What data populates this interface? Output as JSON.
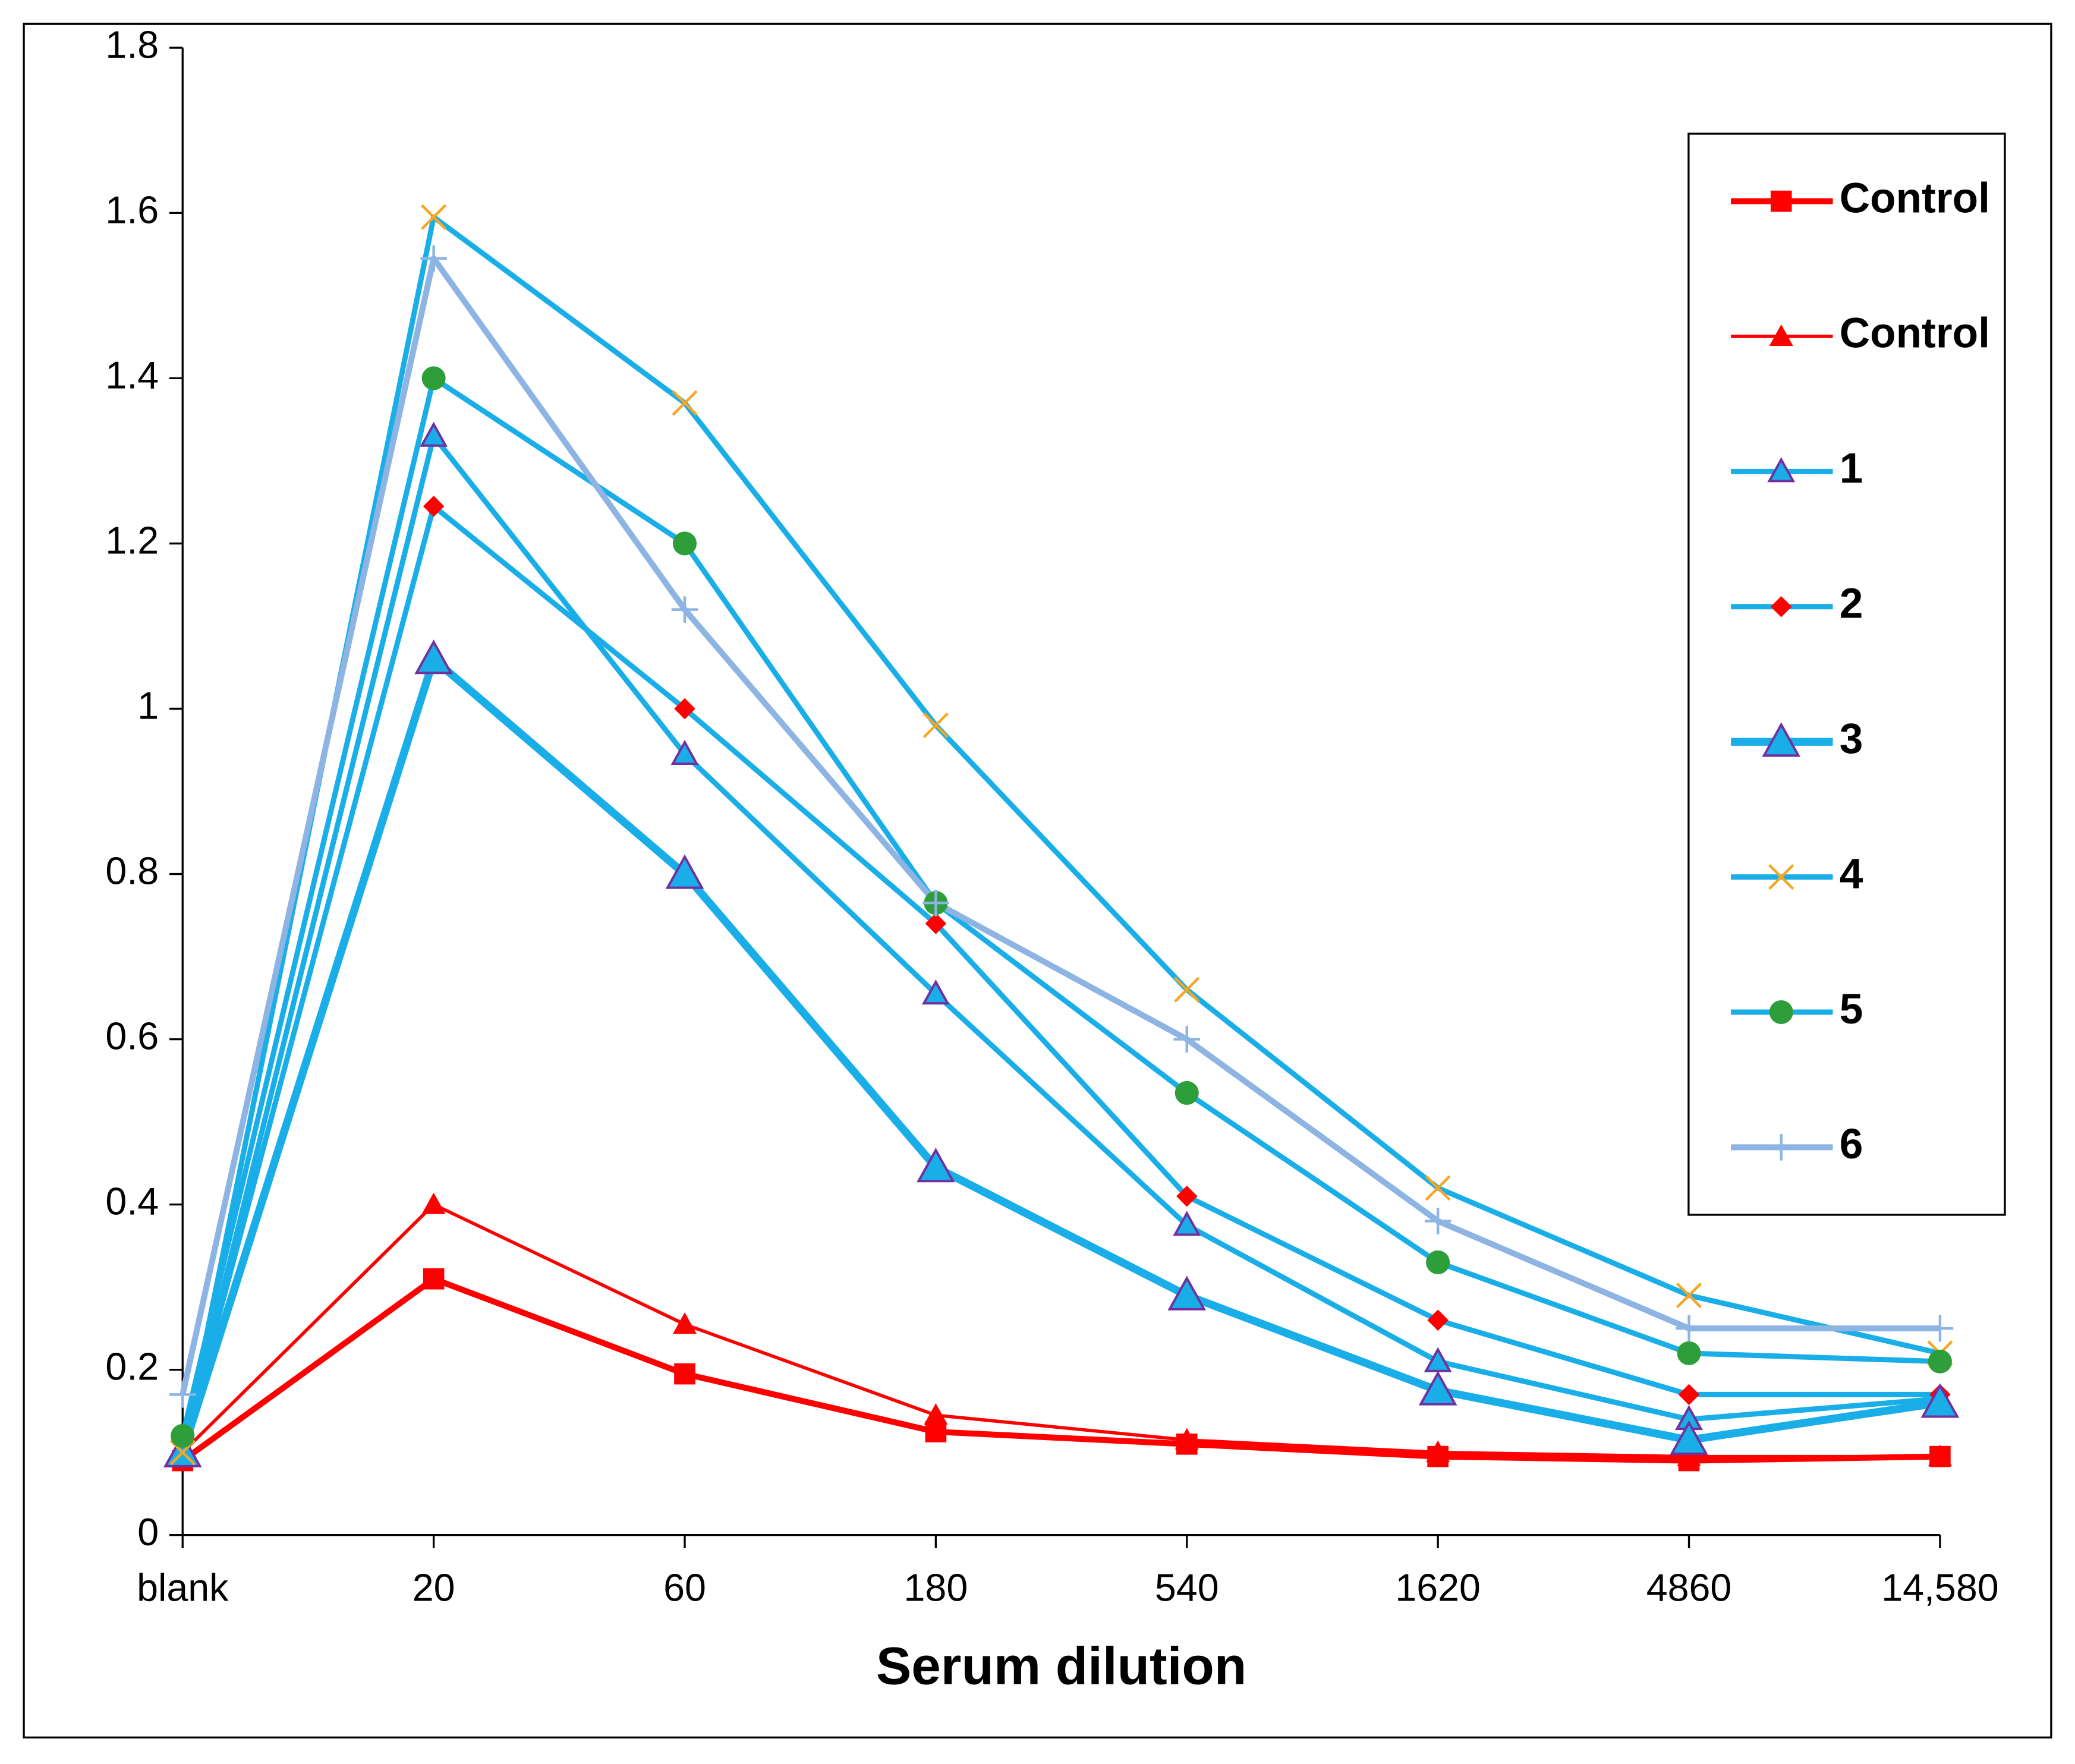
{
  "chart_data": {
    "type": "line",
    "x_label": "Serum  dilution",
    "categories": [
      "blank",
      "20",
      "60",
      "180",
      "540",
      "1620",
      "4860",
      "14,580"
    ],
    "ylim": [
      0,
      1.8
    ],
    "yticks": [
      0,
      0.2,
      0.4,
      0.6,
      0.8,
      1,
      1.2,
      1.4,
      1.6,
      1.8
    ],
    "grid": false,
    "legend_position": "right",
    "series": [
      {
        "name": "Control",
        "color": "#ff0000",
        "marker": "square",
        "marker_color": "#ff0000",
        "line_width": 4.5,
        "values": [
          0.09,
          0.31,
          0.195,
          0.125,
          0.11,
          0.095,
          0.09,
          0.095
        ]
      },
      {
        "name": "Control",
        "color": "#ff0000",
        "marker": "triangle",
        "marker_color": "#ff0000",
        "line_width": 2.5,
        "values": [
          0.1,
          0.4,
          0.255,
          0.145,
          0.115,
          0.1,
          0.095,
          0.095
        ]
      },
      {
        "name": "1",
        "color": "#1aaee8",
        "marker": "triangle-outline",
        "marker_color": "#7030a0",
        "line_width": 4,
        "values": [
          0.1,
          1.33,
          0.945,
          0.655,
          0.375,
          0.21,
          0.14,
          0.165
        ]
      },
      {
        "name": "2",
        "color": "#1aaee8",
        "marker": "diamond",
        "marker_color": "#ff0000",
        "line_width": 4,
        "values": [
          0.1,
          1.245,
          1.0,
          0.74,
          0.41,
          0.26,
          0.17,
          0.17
        ]
      },
      {
        "name": "3",
        "color": "#1aaee8",
        "marker": "triangle-large",
        "marker_color": "#7030a0",
        "line_width": 6,
        "values": [
          0.1,
          1.06,
          0.8,
          0.445,
          0.29,
          0.175,
          0.115,
          0.16
        ]
      },
      {
        "name": "4",
        "color": "#1aaee8",
        "marker": "x",
        "marker_color": "#f5a623",
        "line_width": 4,
        "values": [
          0.1,
          1.595,
          1.37,
          0.98,
          0.66,
          0.42,
          0.29,
          0.22
        ]
      },
      {
        "name": "5",
        "color": "#1aaee8",
        "marker": "circle",
        "marker_color": "#2e9e3a",
        "line_width": 4,
        "values": [
          0.12,
          1.4,
          1.2,
          0.765,
          0.535,
          0.33,
          0.22,
          0.21
        ]
      },
      {
        "name": "6",
        "color": "#8db4e2",
        "marker": "plus",
        "marker_color": "#8db4e2",
        "line_width": 4.5,
        "values": [
          0.17,
          1.545,
          1.12,
          0.765,
          0.6,
          0.38,
          0.25,
          0.25
        ]
      }
    ]
  }
}
